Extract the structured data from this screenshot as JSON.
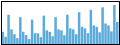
{
  "chart_data": {
    "type": "bar",
    "categories": [
      null,
      null,
      null,
      null,
      null,
      null,
      null,
      null,
      null,
      null,
      null,
      null,
      null,
      null,
      null,
      null,
      null,
      null,
      null,
      null,
      null,
      null,
      null,
      null,
      null,
      null,
      null,
      null,
      null,
      null,
      null,
      null,
      null,
      null,
      null,
      null,
      null,
      null,
      null,
      null
    ],
    "values": [
      55,
      45,
      90,
      60,
      50,
      42,
      85,
      55,
      48,
      40,
      80,
      52,
      52,
      44,
      88,
      58,
      55,
      46,
      85,
      60,
      58,
      48,
      90,
      62,
      60,
      50,
      95,
      65,
      62,
      52,
      100,
      68,
      65,
      54,
      105,
      72,
      68,
      56,
      110,
      75
    ],
    "color": "#5aabdc",
    "ylim": [
      30,
      118
    ],
    "tick_labels": false,
    "grid": false
  }
}
